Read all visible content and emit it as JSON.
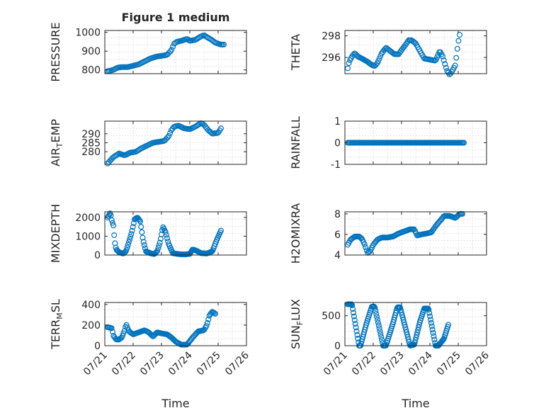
{
  "figure_title": "Figure 1 medium",
  "colors": {
    "marker": "#0072BD",
    "axes": "#262626",
    "grid": "#d4d4d4"
  },
  "chart_data": [
    {
      "type": "scatter",
      "title": "Figure 1 medium",
      "ylabel": "PRESSURE",
      "xlabel": "",
      "xlim": [
        0,
        5
      ],
      "ylim": [
        780,
        1010
      ],
      "yticks": [
        800,
        900,
        1000
      ],
      "ytick_labels": [
        "800",
        "900",
        "1000"
      ],
      "xticks": [
        0,
        1,
        2,
        3,
        4,
        5
      ],
      "xtick_labels": [],
      "grid": "on",
      "anchors": [
        [
          0.1,
          793
        ],
        [
          0.3,
          800
        ],
        [
          0.45,
          812
        ],
        [
          0.6,
          815
        ],
        [
          0.8,
          815
        ],
        [
          1.0,
          822
        ],
        [
          1.2,
          830
        ],
        [
          1.4,
          845
        ],
        [
          1.6,
          860
        ],
        [
          1.8,
          870
        ],
        [
          2.0,
          875
        ],
        [
          2.2,
          880
        ],
        [
          2.35,
          905
        ],
        [
          2.45,
          940
        ],
        [
          2.55,
          950
        ],
        [
          2.7,
          955
        ],
        [
          2.9,
          965
        ],
        [
          3.0,
          955
        ],
        [
          3.2,
          960
        ],
        [
          3.35,
          975
        ],
        [
          3.5,
          985
        ],
        [
          3.6,
          975
        ],
        [
          3.75,
          962
        ],
        [
          3.9,
          945
        ],
        [
          4.1,
          935
        ],
        [
          4.2,
          935
        ]
      ]
    },
    {
      "type": "scatter",
      "title": "",
      "ylabel": "THETA",
      "xlabel": "",
      "xlim": [
        0,
        5
      ],
      "ylim": [
        294.5,
        298.5
      ],
      "yticks": [
        296,
        298
      ],
      "ytick_labels": [
        "296",
        "298"
      ],
      "xticks": [
        0,
        1,
        2,
        3,
        4,
        5
      ],
      "xtick_labels": [],
      "grid": "on",
      "anchors": [
        [
          0.1,
          295.0
        ],
        [
          0.15,
          295.6
        ],
        [
          0.25,
          296.1
        ],
        [
          0.35,
          296.4
        ],
        [
          0.45,
          296.1
        ],
        [
          0.6,
          295.9
        ],
        [
          0.8,
          295.6
        ],
        [
          0.95,
          295.3
        ],
        [
          1.05,
          295.2
        ],
        [
          1.15,
          295.5
        ],
        [
          1.3,
          296.4
        ],
        [
          1.45,
          296.9
        ],
        [
          1.6,
          296.6
        ],
        [
          1.75,
          296.3
        ],
        [
          1.9,
          296.3
        ],
        [
          2.0,
          296.7
        ],
        [
          2.15,
          297.2
        ],
        [
          2.25,
          297.6
        ],
        [
          2.35,
          297.6
        ],
        [
          2.5,
          297.3
        ],
        [
          2.65,
          296.6
        ],
        [
          2.8,
          295.9
        ],
        [
          3.0,
          295.8
        ],
        [
          3.2,
          295.7
        ],
        [
          3.35,
          296.6
        ],
        [
          3.45,
          296.1
        ],
        [
          3.6,
          294.8
        ],
        [
          3.7,
          294.4
        ],
        [
          3.8,
          294.8
        ],
        [
          3.9,
          295.3
        ],
        [
          3.95,
          296.4
        ],
        [
          4.0,
          297.4
        ],
        [
          4.05,
          298.1
        ]
      ]
    },
    {
      "type": "scatter",
      "title": "",
      "ylabel": "AIR_TEMP",
      "xlabel": "",
      "xlim": [
        0,
        5
      ],
      "ylim": [
        273,
        297
      ],
      "yticks": [
        280,
        285,
        290
      ],
      "ytick_labels": [
        "280",
        "285",
        "290"
      ],
      "xticks": [
        0,
        1,
        2,
        3,
        4,
        5
      ],
      "xtick_labels": [],
      "grid": "on",
      "anchors": [
        [
          0.1,
          273.5
        ],
        [
          0.3,
          277
        ],
        [
          0.5,
          279
        ],
        [
          0.7,
          278
        ],
        [
          0.9,
          279.5
        ],
        [
          1.1,
          280
        ],
        [
          1.3,
          282
        ],
        [
          1.5,
          283.5
        ],
        [
          1.7,
          285
        ],
        [
          1.9,
          285.5
        ],
        [
          2.1,
          286
        ],
        [
          2.25,
          288.5
        ],
        [
          2.35,
          292
        ],
        [
          2.45,
          294
        ],
        [
          2.6,
          294.5
        ],
        [
          2.8,
          293
        ],
        [
          3.0,
          292.5
        ],
        [
          3.2,
          294
        ],
        [
          3.4,
          296
        ],
        [
          3.5,
          295
        ],
        [
          3.65,
          292
        ],
        [
          3.8,
          290
        ],
        [
          4.0,
          290.5
        ],
        [
          4.1,
          293
        ]
      ]
    },
    {
      "type": "scatter",
      "title": "",
      "ylabel": "RAINFALL",
      "xlabel": "",
      "xlim": [
        0,
        5
      ],
      "ylim": [
        -1,
        1
      ],
      "yticks": [
        -1,
        0,
        1
      ],
      "ytick_labels": [
        "-1",
        "0",
        "1"
      ],
      "xticks": [
        0,
        1,
        2,
        3,
        4,
        5
      ],
      "xtick_labels": [],
      "grid": "on",
      "anchors": [
        [
          0.1,
          0
        ],
        [
          4.2,
          0
        ]
      ]
    },
    {
      "type": "scatter",
      "title": "",
      "ylabel": "MIXDEPTH",
      "xlabel": "",
      "xlim": [
        0,
        5
      ],
      "ylim": [
        0,
        2300
      ],
      "yticks": [
        0,
        1000,
        2000
      ],
      "ytick_labels": [
        "0",
        "1000",
        "2000"
      ],
      "xticks": [
        0,
        1,
        2,
        3,
        4,
        5
      ],
      "xtick_labels": [],
      "grid": "on",
      "anchors": [
        [
          0.1,
          2000
        ],
        [
          0.2,
          2250
        ],
        [
          0.25,
          1800
        ],
        [
          0.3,
          1600
        ],
        [
          0.35,
          700
        ],
        [
          0.4,
          300
        ],
        [
          0.5,
          150
        ],
        [
          0.65,
          80
        ],
        [
          0.75,
          200
        ],
        [
          0.85,
          700
        ],
        [
          0.95,
          1200
        ],
        [
          1.05,
          1900
        ],
        [
          1.15,
          2000
        ],
        [
          1.25,
          1800
        ],
        [
          1.35,
          800
        ],
        [
          1.45,
          200
        ],
        [
          1.6,
          100
        ],
        [
          1.75,
          50
        ],
        [
          1.85,
          200
        ],
        [
          1.95,
          700
        ],
        [
          2.05,
          1500
        ],
        [
          2.15,
          1200
        ],
        [
          2.25,
          600
        ],
        [
          2.4,
          100
        ],
        [
          2.6,
          50
        ],
        [
          2.8,
          30
        ],
        [
          3.0,
          60
        ],
        [
          3.1,
          300
        ],
        [
          3.2,
          250
        ],
        [
          3.4,
          100
        ],
        [
          3.6,
          80
        ],
        [
          3.8,
          200
        ],
        [
          3.95,
          800
        ],
        [
          4.1,
          1300
        ]
      ]
    },
    {
      "type": "scatter",
      "title": "",
      "ylabel": "H2OMIXRA",
      "xlabel": "",
      "xlim": [
        0,
        5
      ],
      "ylim": [
        4,
        8.2
      ],
      "yticks": [
        4,
        6,
        8
      ],
      "ytick_labels": [
        "4",
        "6",
        "8"
      ],
      "xticks": [
        0,
        1,
        2,
        3,
        4,
        5
      ],
      "xtick_labels": [],
      "grid": "on",
      "anchors": [
        [
          0.1,
          5.0
        ],
        [
          0.2,
          5.5
        ],
        [
          0.35,
          5.8
        ],
        [
          0.5,
          5.8
        ],
        [
          0.6,
          5.6
        ],
        [
          0.7,
          5.0
        ],
        [
          0.8,
          4.2
        ],
        [
          0.9,
          4.4
        ],
        [
          1.0,
          5.0
        ],
        [
          1.15,
          5.5
        ],
        [
          1.3,
          5.7
        ],
        [
          1.5,
          5.7
        ],
        [
          1.7,
          5.8
        ],
        [
          1.9,
          6.1
        ],
        [
          2.1,
          6.3
        ],
        [
          2.3,
          6.5
        ],
        [
          2.45,
          6.5
        ],
        [
          2.55,
          5.9
        ],
        [
          2.7,
          6.0
        ],
        [
          2.9,
          6.1
        ],
        [
          3.05,
          6.2
        ],
        [
          3.2,
          6.8
        ],
        [
          3.35,
          7.3
        ],
        [
          3.5,
          7.8
        ],
        [
          3.7,
          7.8
        ],
        [
          3.9,
          7.6
        ],
        [
          4.05,
          8.0
        ],
        [
          4.15,
          8.0
        ]
      ]
    },
    {
      "type": "scatter",
      "title": "",
      "ylabel": "TERR_MSL",
      "xlabel": "Time",
      "xlim": [
        0,
        5
      ],
      "ylim": [
        0,
        420
      ],
      "yticks": [
        0,
        200,
        400
      ],
      "ytick_labels": [
        "0",
        "200",
        "400"
      ],
      "xticks": [
        0,
        1,
        2,
        3,
        4,
        5
      ],
      "xtick_labels": [
        "07/21",
        "07/22",
        "07/23",
        "07/24",
        "07/25",
        "07/26"
      ],
      "grid": "on",
      "anchors": [
        [
          0.1,
          180
        ],
        [
          0.25,
          170
        ],
        [
          0.3,
          100
        ],
        [
          0.4,
          60
        ],
        [
          0.5,
          60
        ],
        [
          0.6,
          80
        ],
        [
          0.7,
          150
        ],
        [
          0.75,
          210
        ],
        [
          0.85,
          140
        ],
        [
          1.0,
          110
        ],
        [
          1.2,
          130
        ],
        [
          1.4,
          150
        ],
        [
          1.55,
          130
        ],
        [
          1.7,
          90
        ],
        [
          1.85,
          130
        ],
        [
          2.0,
          120
        ],
        [
          2.2,
          110
        ],
        [
          2.35,
          80
        ],
        [
          2.5,
          40
        ],
        [
          2.7,
          10
        ],
        [
          2.9,
          10
        ],
        [
          3.1,
          80
        ],
        [
          3.3,
          140
        ],
        [
          3.5,
          150
        ],
        [
          3.6,
          200
        ],
        [
          3.7,
          300
        ],
        [
          3.8,
          330
        ],
        [
          3.9,
          310
        ]
      ]
    },
    {
      "type": "scatter",
      "title": "",
      "ylabel": "SUN_FLUX",
      "xlabel": "Time",
      "xlim": [
        0,
        5
      ],
      "ylim": [
        0,
        720
      ],
      "yticks": [
        0,
        500
      ],
      "ytick_labels": [
        "0",
        "500"
      ],
      "xticks": [
        0,
        1,
        2,
        3,
        4,
        5
      ],
      "xtick_labels": [
        "07/21",
        "07/22",
        "07/23",
        "07/24",
        "07/25",
        "07/26"
      ],
      "grid": "on",
      "anchors": [
        [
          0.1,
          690
        ],
        [
          0.25,
          690
        ],
        [
          0.5,
          0
        ],
        [
          0.55,
          0
        ],
        [
          0.75,
          350
        ],
        [
          0.95,
          650
        ],
        [
          1.05,
          650
        ],
        [
          1.35,
          0
        ],
        [
          1.45,
          0
        ],
        [
          1.7,
          380
        ],
        [
          1.85,
          640
        ],
        [
          1.95,
          640
        ],
        [
          2.3,
          0
        ],
        [
          2.45,
          20
        ],
        [
          2.65,
          400
        ],
        [
          2.8,
          620
        ],
        [
          2.95,
          620
        ],
        [
          3.2,
          0
        ],
        [
          3.3,
          0
        ],
        [
          3.5,
          120
        ],
        [
          3.65,
          350
        ]
      ]
    }
  ]
}
